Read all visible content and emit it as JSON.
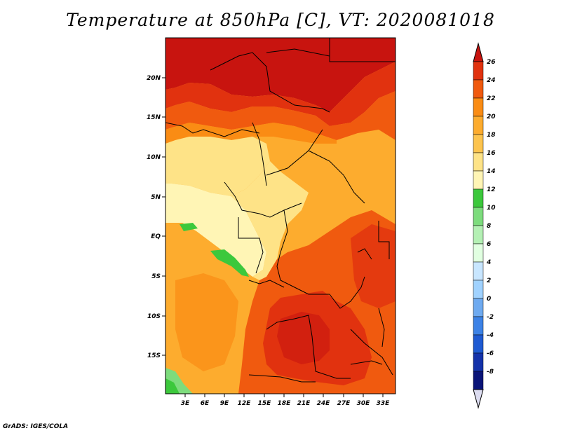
{
  "title": "Temperature at 850hPa [C], VT: 2020081018",
  "credit": "GrADS: IGES/COLA",
  "map": {
    "lat_labels": [
      "20N",
      "15N",
      "10N",
      "5N",
      "EQ",
      "5S",
      "10S",
      "15S"
    ],
    "lon_labels": [
      "3E",
      "6E",
      "9E",
      "12E",
      "15E",
      "18E",
      "21E",
      "24E",
      "27E",
      "30E",
      "33E"
    ]
  },
  "colorbar": {
    "labels": [
      "26",
      "24",
      "22",
      "20",
      "18",
      "16",
      "14",
      "12",
      "10",
      "8",
      "6",
      "4",
      "2",
      "0",
      "-2",
      "-4",
      "-6",
      "-8"
    ],
    "colors": [
      "#c8140f",
      "#e1320f",
      "#f05a0f",
      "#fa8c14",
      "#fdac2e",
      "#fdc44e",
      "#fee387",
      "#fff5b5",
      "#3cc83c",
      "#7ddc7d",
      "#b4f0b4",
      "#e1ffe1",
      "#c8e6ff",
      "#a0d2ff",
      "#6eaaf0",
      "#3c82e6",
      "#1e5ad2",
      "#1432aa",
      "#0a1478",
      "#dcdcf0"
    ]
  }
}
